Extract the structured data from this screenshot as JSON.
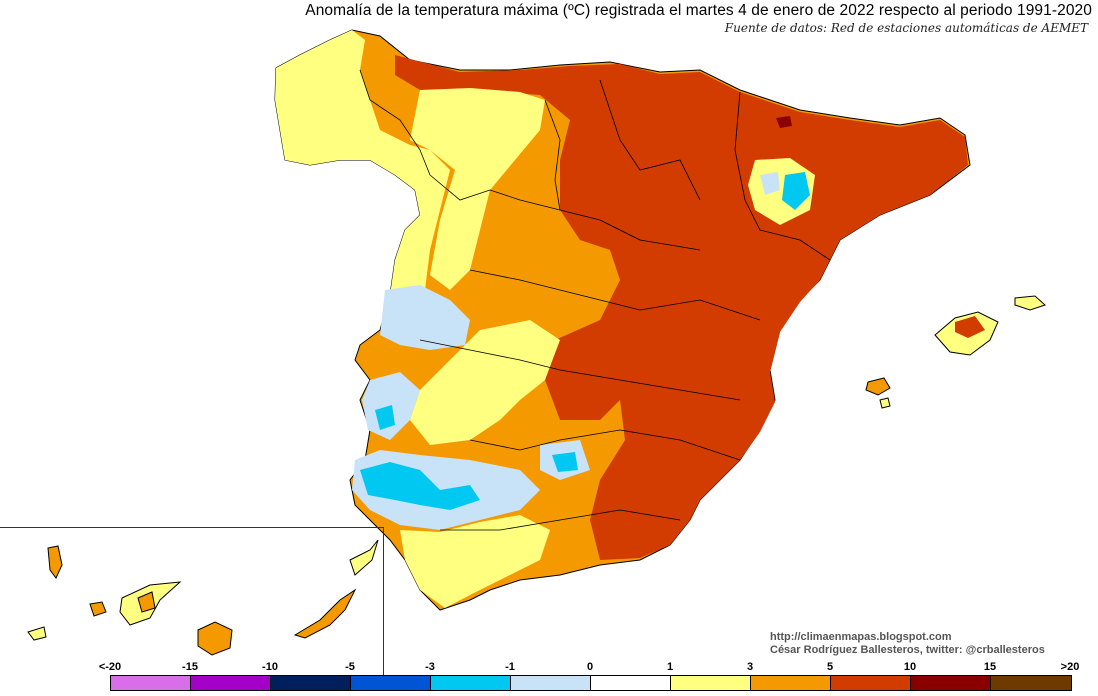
{
  "title": "Anomalía de la temperatura máxima (ºC) registrada el martes 4 de enero de 2022 respecto al periodo 1991-2020",
  "subtitle": "Fuente de datos: Red de estaciones automáticas de AEMET",
  "credits": {
    "line1": "http://climaenmapas.blogspot.com",
    "line2": "César Rodríguez Ballesteros, twitter: @crballesteros"
  },
  "legend": {
    "colors": [
      "#d86ee8",
      "#a300c8",
      "#001f5c",
      "#0055d4",
      "#00c8f0",
      "#c8e2f8",
      "#ffffff",
      "#ffff80",
      "#f49a00",
      "#d23c00",
      "#8a0000",
      "#6e3a00"
    ],
    "labels": [
      "<-20",
      "-15",
      "-10",
      "-5",
      "-3",
      "-1",
      "0",
      "1",
      "3",
      "5",
      "10",
      "15",
      ">20"
    ]
  },
  "colors": {
    "cold_light": "#c8e2f8",
    "cold": "#00c8f0",
    "neutral": "#ffffff",
    "warm_light": "#ffff80",
    "warm": "#f49a00",
    "hot": "#d23c00",
    "very_hot": "#8a0000"
  }
}
